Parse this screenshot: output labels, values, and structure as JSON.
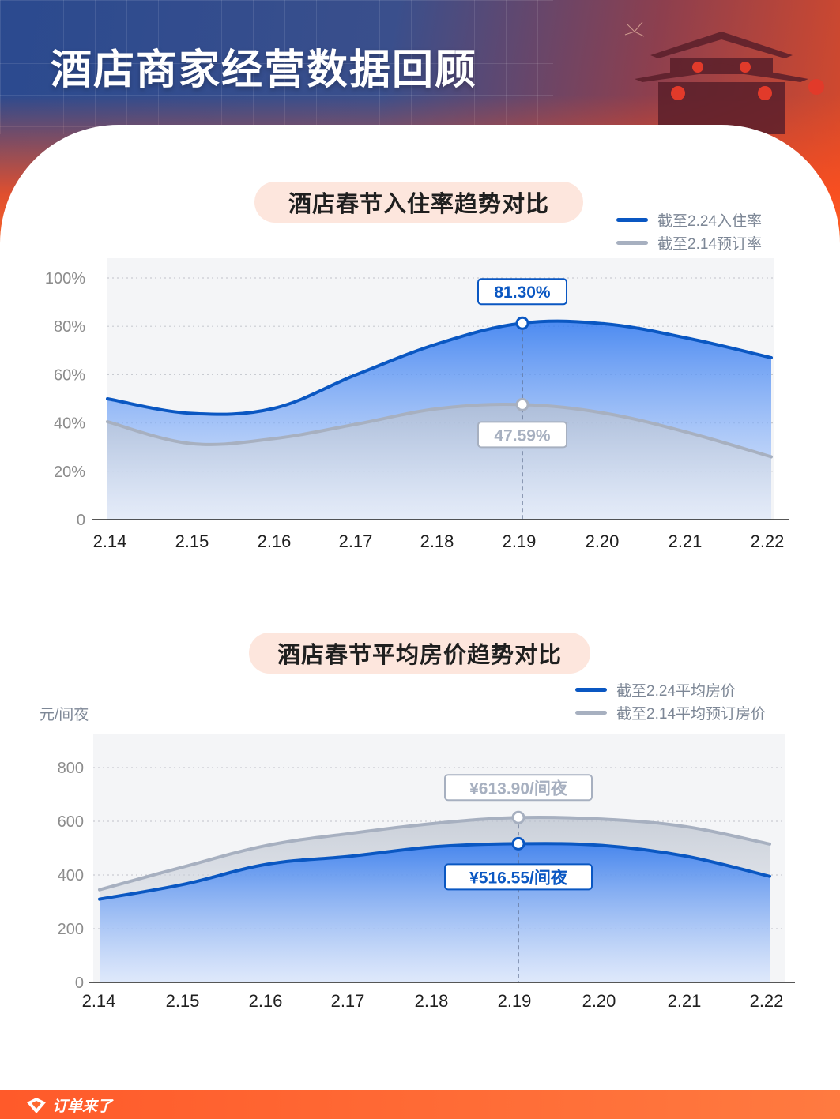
{
  "header": {
    "title": "酒店商家经营数据回顾"
  },
  "colors": {
    "primary": "#0a57c2",
    "secondary": "#a7b0c0",
    "pill_bg": "#fde6dd",
    "accent": "#ff5a2a"
  },
  "charts": [
    {
      "title": "酒店春节入住率趋势对比",
      "unit": "",
      "legend": [
        "截至2.24入住率",
        "截至2.14预订率"
      ],
      "callout_primary": "81.30%",
      "callout_secondary": "47.59%"
    },
    {
      "title": "酒店春节平均房价趋势对比",
      "unit": "元/间夜",
      "legend": [
        "截至2.24平均房价",
        "截至2.14平均预订房价"
      ],
      "callout_primary": "¥516.55/间夜",
      "callout_secondary": "¥613.90/间夜"
    }
  ],
  "chart_data": [
    {
      "type": "area",
      "title": "酒店春节入住率趋势对比",
      "x": [
        "2.14",
        "2.15",
        "2.16",
        "2.17",
        "2.18",
        "2.19",
        "2.20",
        "2.21",
        "2.22"
      ],
      "y_ticks": [
        "0",
        "20%",
        "40%",
        "60%",
        "80%",
        "100%"
      ],
      "ylim": [
        0,
        100
      ],
      "series": [
        {
          "name": "截至2.24入住率",
          "values": [
            50,
            44,
            46,
            60,
            73,
            81.3,
            81,
            75,
            67
          ]
        },
        {
          "name": "截至2.14预订率",
          "values": [
            40.5,
            31.5,
            33.5,
            39.5,
            46,
            47.59,
            44,
            36,
            26
          ]
        }
      ],
      "highlight_index": 5,
      "grid": true,
      "legend_position": "top-right"
    },
    {
      "type": "area",
      "title": "酒店春节平均房价趋势对比",
      "x": [
        "2.14",
        "2.15",
        "2.16",
        "2.17",
        "2.18",
        "2.19",
        "2.20",
        "2.21",
        "2.22"
      ],
      "y_ticks": [
        "0",
        "200",
        "400",
        "600",
        "800"
      ],
      "ylim": [
        0,
        800
      ],
      "ylabel": "元/间夜",
      "series": [
        {
          "name": "截至2.24平均房价",
          "values": [
            310,
            365,
            440,
            470,
            505,
            516.55,
            510,
            470,
            395
          ]
        },
        {
          "name": "截至2.14平均预订房价",
          "values": [
            345,
            430,
            510,
            555,
            592,
            613.9,
            608,
            580,
            515
          ]
        }
      ],
      "highlight_index": 5,
      "grid": true,
      "legend_position": "top-right"
    }
  ],
  "footer": {
    "brand": "订单来了"
  }
}
